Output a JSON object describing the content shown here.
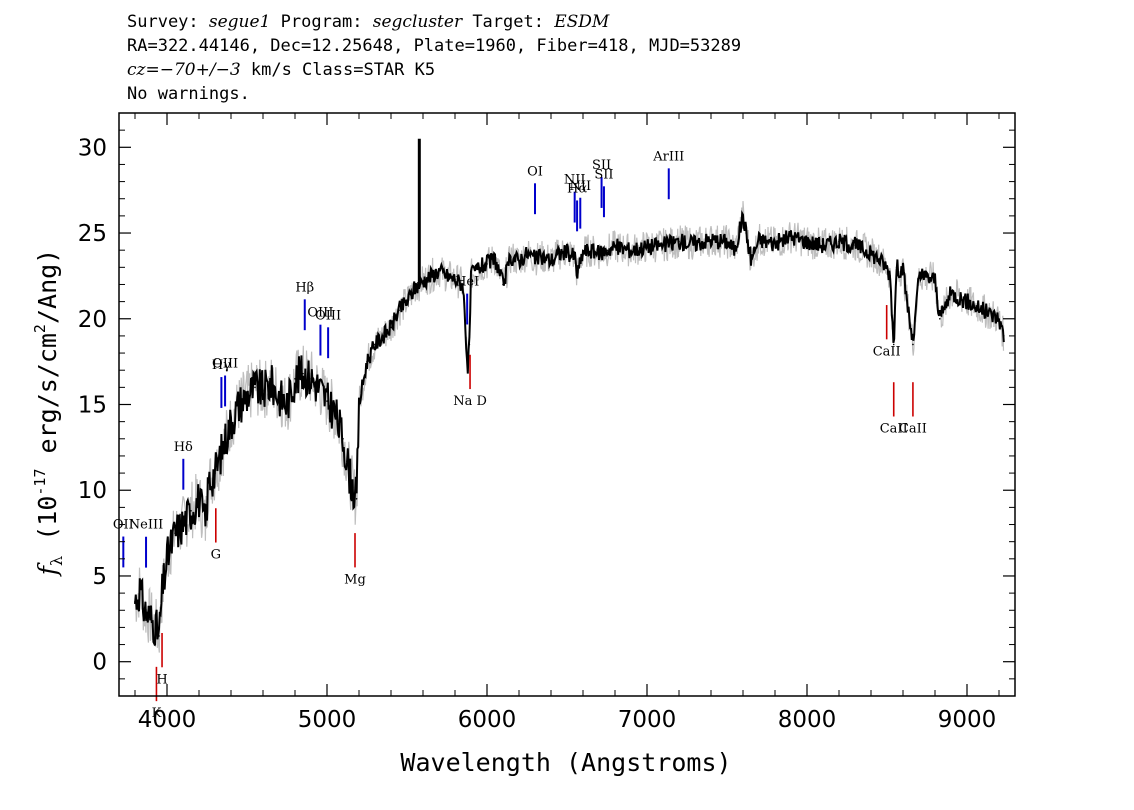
{
  "header": {
    "line1_prefix": "Survey: ",
    "survey": "segue1",
    "line1_mid": " Program: ",
    "program": "segcluster",
    "line1_mid2": " Target: ",
    "target": "ESDM",
    "line2": "RA=322.44146, Dec=12.25648, Plate=1960, Fiber=418, MJD=53289",
    "line3_cz": "cz=−70+/−3",
    "line3_rest": " km/s Class=STAR K5",
    "line4": "No warnings."
  },
  "colors": {
    "flux": "#000000",
    "error": "#bebebe",
    "emission": "#0000cc",
    "absorption": "#cc0000"
  },
  "chart_data": {
    "type": "line",
    "title": "",
    "xlabel": "Wavelength (Angstroms)",
    "ylabel": "f_λ (10^-17 erg/s/cm^2/Ang)",
    "xlim": [
      3700,
      9300
    ],
    "ylim": [
      -2,
      32
    ],
    "xticks": [
      4000,
      5000,
      6000,
      7000,
      8000,
      9000
    ],
    "yticks": [
      0,
      5,
      10,
      15,
      20,
      25,
      30
    ],
    "grid": false,
    "series": [
      {
        "x": [
          3800,
          3830,
          3860,
          3900,
          3930,
          3950,
          3970,
          4000,
          4050,
          4100,
          4150,
          4200,
          4240,
          4260,
          4300,
          4350,
          4400,
          4450,
          4500,
          4550,
          4600,
          4650,
          4700,
          4750,
          4800,
          4850,
          4900,
          4950,
          5000,
          5050,
          5100,
          5150,
          5170,
          5185,
          5200,
          5250,
          5300,
          5350,
          5400,
          5450,
          5500,
          5550,
          5600,
          5650,
          5700,
          5750,
          5800,
          5850,
          5880,
          5890,
          5900,
          5950,
          6000,
          6050,
          6100,
          6150,
          6200,
          6250,
          6300,
          6350,
          6400,
          6450,
          6500,
          6550,
          6563,
          6600,
          6650,
          6700,
          6750,
          6800,
          6900,
          7000,
          7100,
          7200,
          7300,
          7400,
          7500,
          7550,
          7600,
          7650,
          7700,
          7800,
          7900,
          8000,
          8100,
          8200,
          8300,
          8400,
          8450,
          8498,
          8520,
          8542,
          8560,
          8600,
          8662,
          8700,
          8800,
          8830,
          8900,
          9000,
          9100,
          9200,
          9230
        ],
        "y": [
          3.5,
          4.2,
          3.0,
          2.5,
          2.0,
          1.5,
          4.0,
          6.0,
          7.5,
          8.0,
          8.8,
          9.5,
          8.0,
          10.5,
          11.0,
          12.5,
          14.0,
          15.0,
          15.5,
          16.0,
          15.8,
          16.2,
          15.5,
          15.0,
          16.5,
          16.8,
          16.5,
          16.0,
          15.2,
          14.5,
          13.0,
          10.5,
          9.8,
          9.5,
          15.0,
          17.5,
          18.5,
          19.0,
          19.5,
          20.5,
          21.0,
          21.8,
          22.2,
          22.5,
          22.8,
          22.5,
          22.3,
          22.0,
          17.0,
          18.5,
          22.5,
          23.0,
          23.2,
          23.5,
          22.0,
          23.6,
          23.4,
          23.8,
          23.5,
          23.6,
          23.4,
          23.8,
          23.9,
          23.6,
          22.5,
          23.9,
          24.0,
          23.8,
          24.0,
          24.2,
          24.0,
          24.2,
          24.3,
          24.5,
          24.4,
          24.6,
          24.5,
          24.0,
          26.0,
          23.5,
          24.6,
          24.4,
          24.8,
          24.5,
          24.3,
          24.5,
          24.3,
          23.8,
          23.5,
          23.0,
          22.5,
          18.5,
          23.0,
          22.8,
          18.5,
          22.5,
          22.3,
          20.0,
          21.5,
          21.0,
          20.5,
          20.0,
          19.0
        ]
      }
    ],
    "spike": {
      "x": 5577,
      "y": 30.5
    },
    "emission_lines": [
      {
        "label": "OII",
        "x": 3727
      },
      {
        "label": "NeIII",
        "x": 3869
      },
      {
        "label": "Hδ",
        "x": 4102
      },
      {
        "label": "Hγ",
        "x": 4340
      },
      {
        "label": "OIII",
        "x": 4363
      },
      {
        "label": "Hβ",
        "x": 4861
      },
      {
        "label": "OIII",
        "x": 4959
      },
      {
        "label": "OIII",
        "x": 5007
      },
      {
        "label": "HeI",
        "x": 5876
      },
      {
        "label": "OI",
        "x": 6300
      },
      {
        "label": "NII",
        "x": 6548
      },
      {
        "label": "Hα",
        "x": 6563
      },
      {
        "label": "NII",
        "x": 6583
      },
      {
        "label": "SII",
        "x": 6716
      },
      {
        "label": "SII",
        "x": 6731
      },
      {
        "label": "ArIII",
        "x": 7136
      }
    ],
    "absorption_lines": [
      {
        "label": "K",
        "x": 3934
      },
      {
        "label": "H",
        "x": 3969
      },
      {
        "label": "G",
        "x": 4305
      },
      {
        "label": "Mg",
        "x": 5175
      },
      {
        "label": "Na D",
        "x": 5894
      },
      {
        "label": "CaII",
        "x": 8498
      },
      {
        "label": "CaII",
        "x": 8542
      },
      {
        "label": "CaII",
        "x": 8662
      }
    ]
  }
}
